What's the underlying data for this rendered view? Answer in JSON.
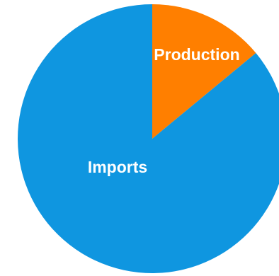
{
  "chart_data": {
    "type": "pie",
    "slices": [
      {
        "label": "Production",
        "value": 14,
        "color": "#ff7f00"
      },
      {
        "label": "Imports",
        "value": 86,
        "color": "#0f96e0"
      }
    ],
    "label_color": "#ffffff"
  }
}
